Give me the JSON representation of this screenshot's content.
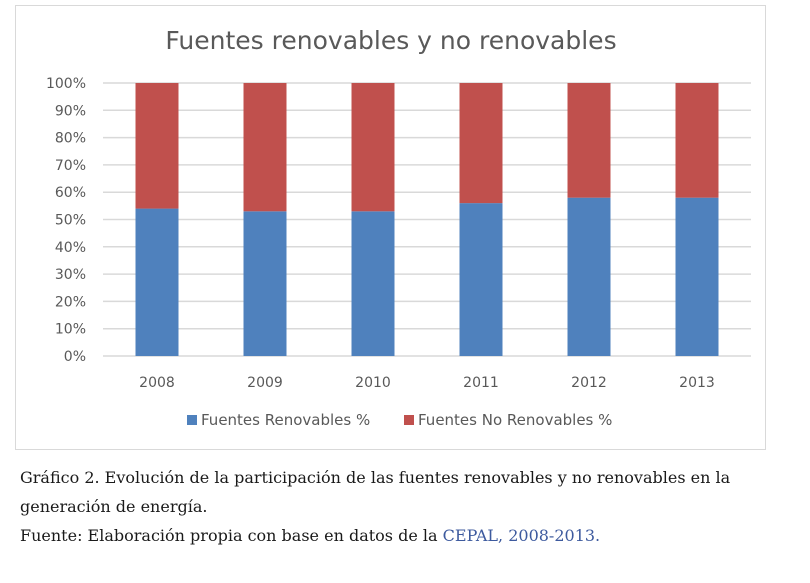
{
  "chart_data": {
    "type": "bar",
    "stacked": true,
    "percent": true,
    "title": "Fuentes renovables y no renovables",
    "xlabel": "",
    "ylabel": "",
    "categories": [
      "2008",
      "2009",
      "2010",
      "2011",
      "2012",
      "2013"
    ],
    "series": [
      {
        "name": "Fuentes Renovables %",
        "color": "#4f81bd",
        "values": [
          54,
          53,
          53,
          56,
          58,
          58
        ]
      },
      {
        "name": "Fuentes No Renovables %",
        "color": "#c0504d",
        "values": [
          46,
          47,
          47,
          44,
          42,
          42
        ]
      }
    ],
    "ylim": [
      0,
      100
    ],
    "yticks": [
      "0%",
      "10%",
      "20%",
      "30%",
      "40%",
      "50%",
      "60%",
      "70%",
      "80%",
      "90%",
      "100%"
    ],
    "grid": true,
    "legend": "bottom"
  },
  "caption": {
    "line1": "Gráfico 2. Evolución de la participación de las fuentes renovables y no renovables en la generación de energía.",
    "source_prefix": "Fuente: Elaboración propia con base en datos de la ",
    "source_link": "CEPAL, 2008-2013."
  }
}
